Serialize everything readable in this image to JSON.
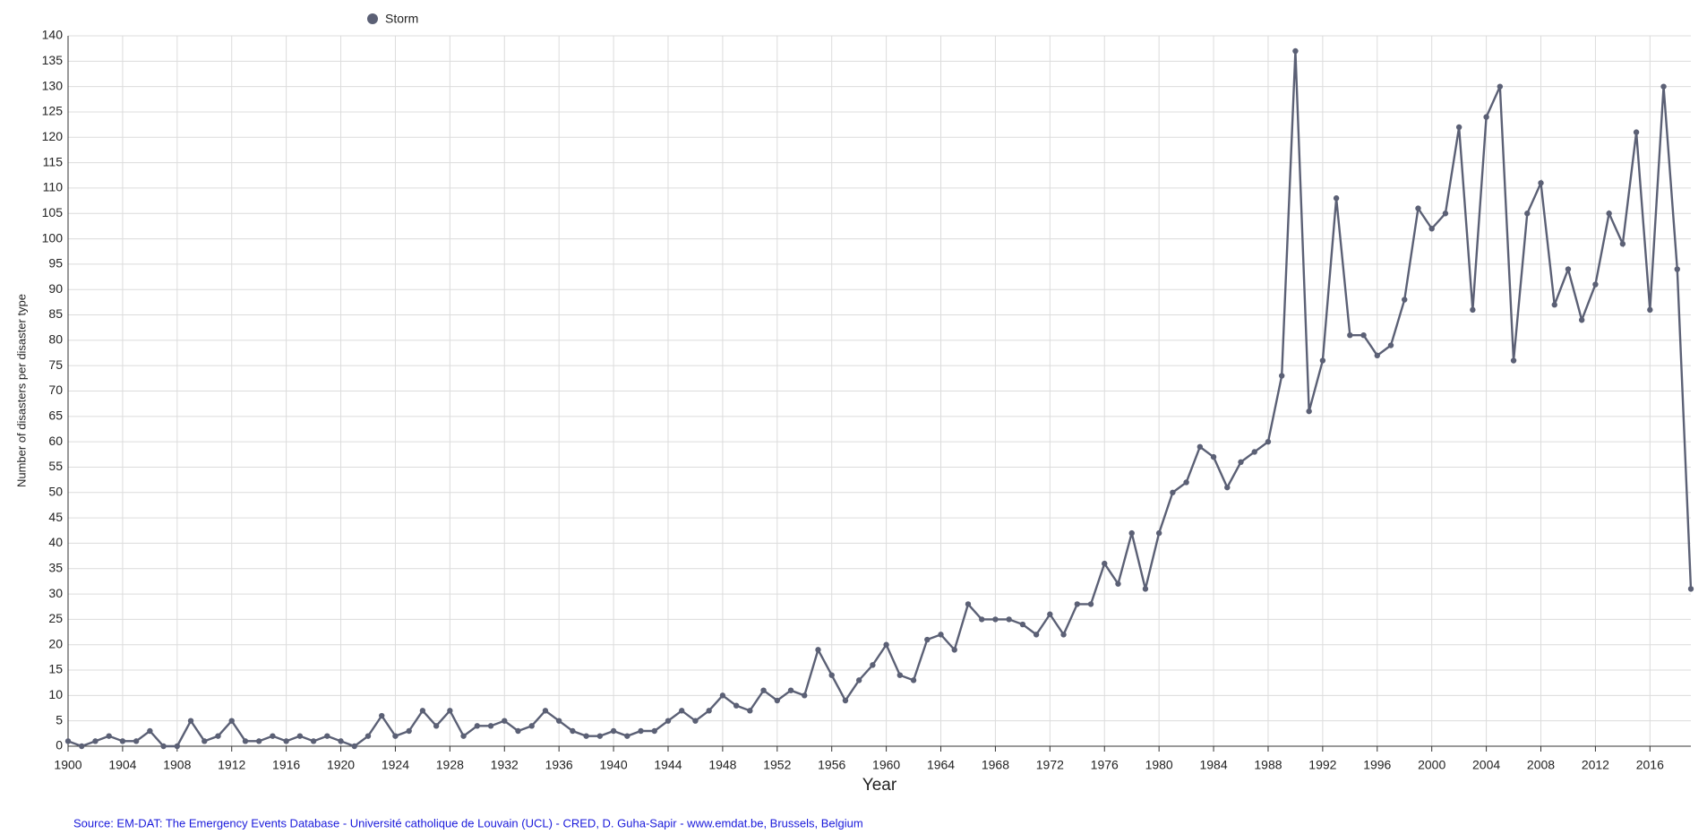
{
  "chart_data": {
    "type": "line",
    "y_label": "Number of disasters per  disaster type",
    "x_label": "Year",
    "source": "Source: EM-DAT: The Emergency Events Database - Université catholique de Louvain (UCL) - CRED, D. Guha-Sapir - www.emdat.be, Brussels, Belgium",
    "x": [
      1900,
      1901,
      1902,
      1903,
      1904,
      1905,
      1906,
      1907,
      1908,
      1909,
      1910,
      1911,
      1912,
      1913,
      1914,
      1915,
      1916,
      1917,
      1918,
      1919,
      1920,
      1921,
      1922,
      1923,
      1924,
      1925,
      1926,
      1927,
      1928,
      1929,
      1930,
      1931,
      1932,
      1933,
      1934,
      1935,
      1936,
      1937,
      1938,
      1939,
      1940,
      1941,
      1942,
      1943,
      1944,
      1945,
      1946,
      1947,
      1948,
      1949,
      1950,
      1951,
      1952,
      1953,
      1954,
      1955,
      1956,
      1957,
      1958,
      1959,
      1960,
      1961,
      1962,
      1963,
      1964,
      1965,
      1966,
      1967,
      1968,
      1969,
      1970,
      1971,
      1972,
      1973,
      1974,
      1975,
      1976,
      1977,
      1978,
      1979,
      1980,
      1981,
      1982,
      1983,
      1984,
      1985,
      1986,
      1987,
      1988,
      1989,
      1990,
      1991,
      1992,
      1993,
      1994,
      1995,
      1996,
      1997,
      1998,
      1999,
      2000,
      2001,
      2002,
      2003,
      2004,
      2005,
      2006,
      2007,
      2008,
      2009,
      2010,
      2011,
      2012,
      2013,
      2014,
      2015,
      2016,
      2017,
      2018,
      2019
    ],
    "series": [
      {
        "name": "Storm",
        "color": "#5b6075",
        "values": [
          1,
          0,
          1,
          2,
          1,
          1,
          3,
          0,
          0,
          5,
          1,
          2,
          5,
          1,
          1,
          2,
          1,
          2,
          1,
          2,
          1,
          0,
          2,
          6,
          2,
          3,
          7,
          4,
          7,
          2,
          4,
          4,
          5,
          3,
          4,
          7,
          5,
          3,
          2,
          2,
          3,
          2,
          3,
          3,
          5,
          7,
          5,
          7,
          10,
          8,
          7,
          11,
          9,
          11,
          10,
          19,
          14,
          9,
          13,
          16,
          20,
          14,
          13,
          21,
          22,
          19,
          28,
          25,
          25,
          25,
          24,
          22,
          26,
          22,
          28,
          28,
          36,
          32,
          42,
          31,
          42,
          50,
          52,
          59,
          57,
          51,
          56,
          58,
          60,
          73,
          137,
          66,
          76,
          108,
          81,
          81,
          77,
          79,
          88,
          106,
          102,
          105,
          122,
          86,
          124,
          130,
          76,
          105,
          111,
          87,
          94,
          84,
          91,
          105,
          99,
          121,
          86,
          130,
          94,
          31
        ]
      }
    ],
    "xlim": [
      1900,
      2019
    ],
    "ylim": [
      0,
      140
    ],
    "xticks": [
      1900,
      1904,
      1908,
      1912,
      1916,
      1920,
      1924,
      1928,
      1932,
      1936,
      1940,
      1944,
      1948,
      1952,
      1956,
      1960,
      1964,
      1968,
      1972,
      1976,
      1980,
      1984,
      1988,
      1992,
      1996,
      2000,
      2004,
      2008,
      2012,
      2016
    ],
    "yticks": [
      0,
      5,
      10,
      15,
      20,
      25,
      30,
      35,
      40,
      45,
      50,
      55,
      60,
      65,
      70,
      75,
      80,
      85,
      90,
      95,
      100,
      105,
      110,
      115,
      120,
      125,
      130,
      135,
      140
    ],
    "grid": true
  }
}
